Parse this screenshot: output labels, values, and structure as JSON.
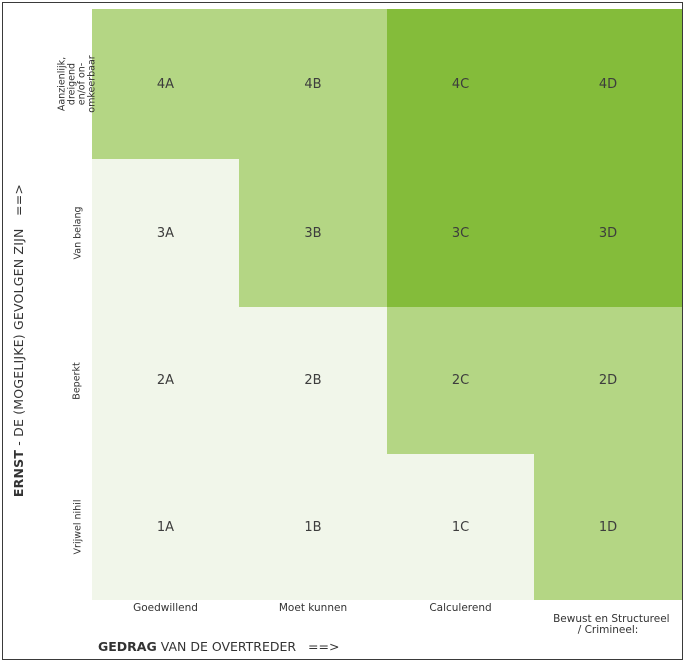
{
  "x_axis_title": {
    "bold": "GEDRAG",
    "rest": " VAN DE OVERTREDER",
    "arrow": "==>"
  },
  "y_axis_title": {
    "bold": "ERNST",
    "rest": " - DE (MOGELIJKE) GEVOLGEN ZIJN",
    "arrow": "==>"
  },
  "x_categories": [
    "Goedwillend",
    "Moet kunnen",
    "Calculerend",
    "Bewust en Structureel\n/ Crimineel:"
  ],
  "y_categories": [
    "Aanzienlijk,\ndreigend\nen/of on-\nomkeerbaar",
    "Van belang",
    "Beperkt",
    "Vrijwel nihil"
  ],
  "rows": [
    [
      "4A",
      "4B",
      "4C",
      "4D"
    ],
    [
      "3A",
      "3B",
      "3C",
      "3D"
    ],
    [
      "2A",
      "2B",
      "2C",
      "2D"
    ],
    [
      "1A",
      "1B",
      "1C",
      "1D"
    ]
  ],
  "level_colors": {
    "light": "#f1f6ea",
    "medium": "#b4d684",
    "dark": "#84bc3a"
  },
  "cell_levels": [
    [
      "medium",
      "medium",
      "dark",
      "dark"
    ],
    [
      "light",
      "medium",
      "dark",
      "dark"
    ],
    [
      "light",
      "light",
      "medium",
      "medium"
    ],
    [
      "light",
      "light",
      "light",
      "medium"
    ]
  ]
}
